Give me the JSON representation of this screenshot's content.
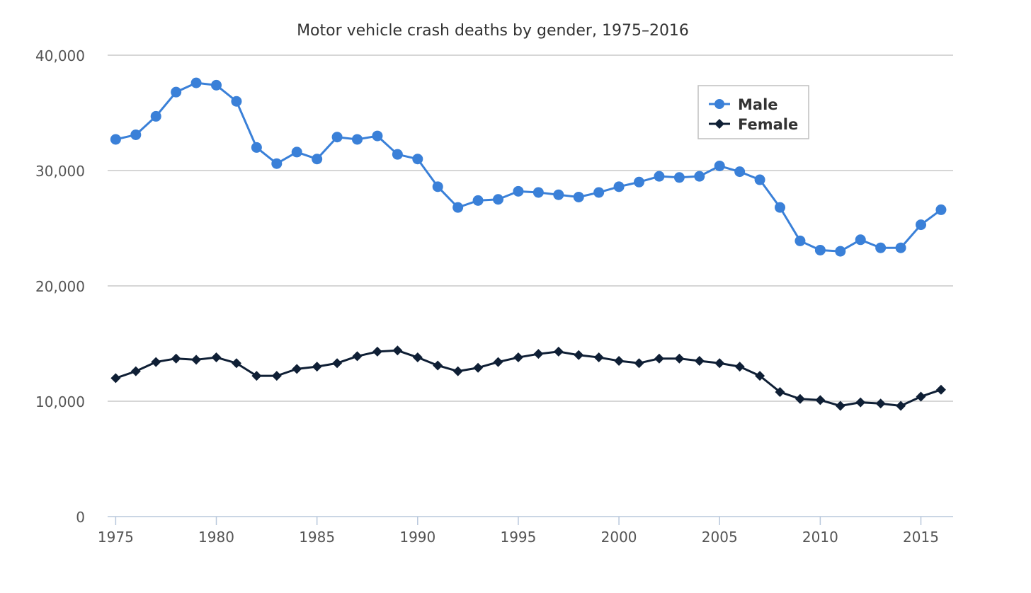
{
  "chart_data": {
    "type": "line",
    "title": "Motor vehicle crash deaths by gender, 1975–2016",
    "xlabel": "",
    "ylabel": "",
    "x": [
      1975,
      1976,
      1977,
      1978,
      1979,
      1980,
      1981,
      1982,
      1983,
      1984,
      1985,
      1986,
      1987,
      1988,
      1989,
      1990,
      1991,
      1992,
      1993,
      1994,
      1995,
      1996,
      1997,
      1998,
      1999,
      2000,
      2001,
      2002,
      2003,
      2004,
      2005,
      2006,
      2007,
      2008,
      2009,
      2010,
      2011,
      2012,
      2013,
      2014,
      2015,
      2016
    ],
    "xlim": [
      1974.6,
      2016.6
    ],
    "x_ticks": [
      "1975",
      "1980",
      "1985",
      "1990",
      "1995",
      "2000",
      "2005",
      "2010",
      "2015"
    ],
    "ylim": [
      0,
      40000
    ],
    "y_ticks": [
      "0",
      "10,000",
      "20,000",
      "30,000",
      "40,000"
    ],
    "grid": true,
    "legend_position": "top-right",
    "series": [
      {
        "name": "Male",
        "color": "#3a80d8",
        "marker": "circle",
        "values": [
          32700,
          33100,
          34700,
          36800,
          37600,
          37400,
          36000,
          32000,
          30600,
          31600,
          31000,
          32900,
          32700,
          33000,
          31400,
          31000,
          28600,
          26800,
          27400,
          27500,
          28200,
          28100,
          27900,
          27700,
          28100,
          28600,
          29000,
          29500,
          29400,
          29500,
          30400,
          29900,
          29200,
          26800,
          23900,
          23100,
          23000,
          24000,
          23300,
          23300,
          25300,
          26600
        ]
      },
      {
        "name": "Female",
        "color": "#0f1f35",
        "marker": "diamond",
        "values": [
          12000,
          12600,
          13400,
          13700,
          13600,
          13800,
          13300,
          12200,
          12200,
          12800,
          13000,
          13300,
          13900,
          14300,
          14400,
          13800,
          13100,
          12600,
          12900,
          13400,
          13800,
          14100,
          14300,
          14000,
          13800,
          13500,
          13300,
          13700,
          13700,
          13500,
          13300,
          13000,
          12200,
          10800,
          10200,
          10100,
          9600,
          9900,
          9800,
          9600,
          10400,
          11000
        ]
      }
    ]
  }
}
